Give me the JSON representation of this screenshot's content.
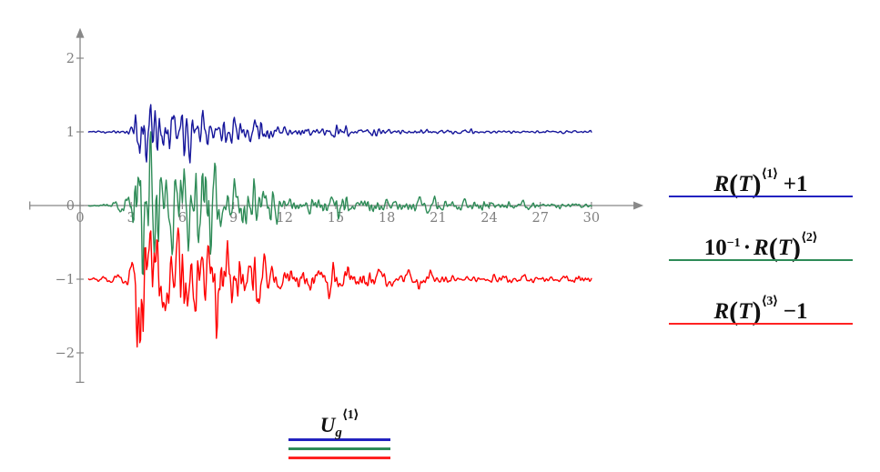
{
  "chart_data": {
    "type": "line",
    "title": "",
    "description": "Three vertically offset earthquake accelerogram response traces R(T) components 1-3",
    "grid": false,
    "axis_color": "#888888",
    "tick_label_color": "#808080",
    "x_axis": {
      "min": -2.95,
      "max": 33,
      "arrow": true,
      "tick_values": [
        0,
        3,
        6,
        9,
        12,
        15,
        18,
        21,
        24,
        27,
        30
      ],
      "tick_labels": [
        "0",
        "3",
        "6",
        "9",
        "12",
        "15",
        "18",
        "21",
        "24",
        "27",
        "30"
      ]
    },
    "y_axis": {
      "min": -2.4,
      "max": 2.4,
      "arrow": true,
      "tick_values": [
        2,
        1,
        0,
        -1,
        -2
      ],
      "tick_labels": [
        "2",
        "1",
        "0",
        "−1",
        "−2"
      ]
    },
    "series": [
      {
        "name": "R(T)^⟨1⟩ + 1",
        "color": "#16169b",
        "offset": 1,
        "amplitude": 0.42,
        "seed": 11
      },
      {
        "name": "10⁻¹ · R(T)^⟨2⟩",
        "color": "#2e8b57",
        "offset": 0,
        "amplitude": 1.0,
        "seed": 29
      },
      {
        "name": "R(T)^⟨3⟩ − 1",
        "color": "#ff0000",
        "offset": -1,
        "amplitude": 0.92,
        "seed": 53
      }
    ],
    "signal": {
      "t_start": 0.5,
      "t_end": 30,
      "dt": 0.05,
      "n_components": 40,
      "f_min": 0.4,
      "f_max": 6.0,
      "envelope": [
        [
          0.5,
          0.012
        ],
        [
          1.3,
          0.03
        ],
        [
          2.1,
          0.06
        ],
        [
          2.8,
          0.1
        ],
        [
          3.1,
          0.22
        ],
        [
          3.45,
          1.0
        ],
        [
          3.9,
          0.92
        ],
        [
          4.4,
          0.78
        ],
        [
          5.0,
          0.5
        ],
        [
          5.6,
          0.56
        ],
        [
          6.3,
          0.6
        ],
        [
          7.0,
          0.55
        ],
        [
          7.6,
          0.64
        ],
        [
          8.3,
          0.45
        ],
        [
          8.9,
          0.3
        ],
        [
          9.6,
          0.28
        ],
        [
          10.4,
          0.4
        ],
        [
          11.1,
          0.25
        ],
        [
          11.8,
          0.13
        ],
        [
          12.6,
          0.1
        ],
        [
          13.4,
          0.13
        ],
        [
          14.1,
          0.1
        ],
        [
          14.9,
          0.2
        ],
        [
          16.0,
          0.08
        ],
        [
          17.5,
          0.11
        ],
        [
          18.5,
          0.07
        ],
        [
          19.7,
          0.1
        ],
        [
          21.0,
          0.06
        ],
        [
          23.0,
          0.06
        ],
        [
          25.0,
          0.05
        ],
        [
          27.0,
          0.045
        ],
        [
          30.0,
          0.04
        ]
      ]
    }
  },
  "legend": {
    "items": [
      {
        "prefix_base": "",
        "prefix_sup": "",
        "dot": "",
        "fn": "R",
        "open": "(",
        "arg": "T",
        "close": ")",
        "sup": "⟨1⟩",
        "suffix": "+1",
        "color": "#2222c0"
      },
      {
        "prefix_base": "10",
        "prefix_sup": "−1",
        "dot": "·",
        "fn": "R",
        "open": "(",
        "arg": "T",
        "close": ")",
        "sup": "⟨2⟩",
        "suffix": "",
        "color": "#2e8b57"
      },
      {
        "prefix_base": "",
        "prefix_sup": "",
        "dot": "",
        "fn": "R",
        "open": "(",
        "arg": "T",
        "close": ")",
        "sup": "⟨3⟩",
        "suffix": "−1",
        "color": "#ff2222"
      }
    ]
  },
  "bottom_legend": {
    "base": "U",
    "sub": "g",
    "sup": "⟨1⟩",
    "line_colors": [
      "#2222c0",
      "#2e8b57",
      "#ff2222"
    ]
  }
}
